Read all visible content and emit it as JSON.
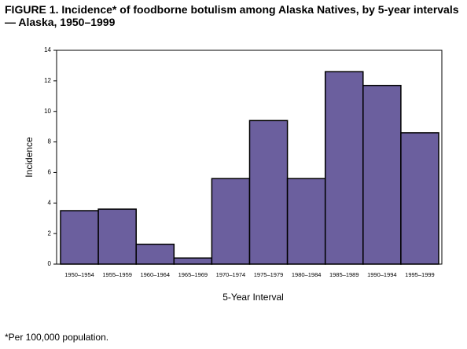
{
  "chart_data": {
    "type": "bar",
    "title": "FIGURE 1. Incidence* of foodborne botulism among Alaska Natives, by 5-year intervals — Alaska, 1950–1999",
    "footnote": "*Per 100,000 population.",
    "x_label": "5-Year Interval",
    "y_label": "Incidence",
    "categories": [
      "1950–1954",
      "1955–1959",
      "1960–1964",
      "1965–1969",
      "1970–1974",
      "1975–1979",
      "1980–1984",
      "1985–1989",
      "1990–1994",
      "1995–1999"
    ],
    "values": [
      3.5,
      3.6,
      1.3,
      0.4,
      5.6,
      9.4,
      5.6,
      12.6,
      11.7,
      8.6
    ],
    "color": "#6b5f9e",
    "ylim": [
      0,
      14
    ],
    "yticks": [
      0,
      2,
      4,
      6,
      8,
      10,
      12,
      14
    ],
    "grid": false
  }
}
